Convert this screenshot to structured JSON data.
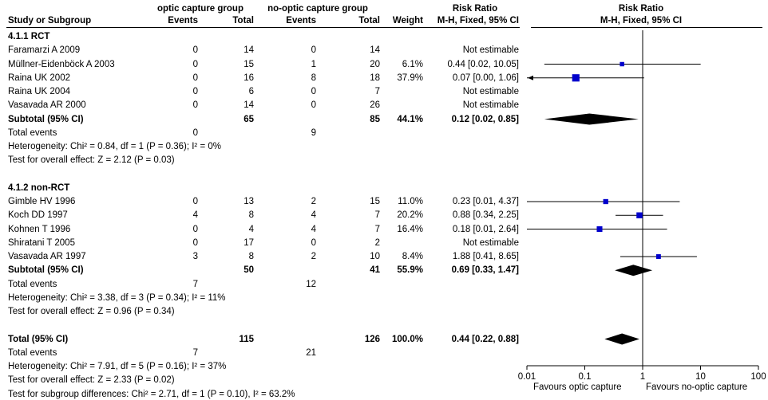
{
  "header": {
    "group1": "optic capture group",
    "group2": "no-optic capture group",
    "rr_col": "Risk Ratio",
    "plot_title": "Risk Ratio",
    "study_col": "Study or Subgroup",
    "events1": "Events",
    "total1": "Total",
    "events2": "Events",
    "total2": "Total",
    "weight": "Weight",
    "method": "M-H, Fixed, 95% CI",
    "plot_method": "M-H, Fixed, 95% CI"
  },
  "rows": [
    {
      "kind": "subgroup",
      "study": "4.1.1 RCT"
    },
    {
      "kind": "study",
      "study": "Faramarzi A 2009",
      "e1": "0",
      "t1": "14",
      "e2": "0",
      "t2": "14",
      "w": "",
      "ci": "Not estimable"
    },
    {
      "kind": "study",
      "study": "Müllner-Eidenböck A  2003",
      "e1": "0",
      "t1": "15",
      "e2": "1",
      "t2": "20",
      "w": "6.1%",
      "ci": "0.44 [0.02, 10.05]"
    },
    {
      "kind": "study",
      "study": "Raina UK 2002",
      "e1": "0",
      "t1": "16",
      "e2": "8",
      "t2": "18",
      "w": "37.9%",
      "ci": "0.07 [0.00, 1.06]"
    },
    {
      "kind": "study",
      "study": "Raina UK 2004",
      "e1": "0",
      "t1": "6",
      "e2": "0",
      "t2": "7",
      "w": "",
      "ci": "Not estimable"
    },
    {
      "kind": "study",
      "study": "Vasavada AR 2000",
      "e1": "0",
      "t1": "14",
      "e2": "0",
      "t2": "26",
      "w": "",
      "ci": "Not estimable"
    },
    {
      "kind": "subtotal",
      "study": "Subtotal (95% CI)",
      "e1": "",
      "t1": "65",
      "e2": "",
      "t2": "85",
      "w": "44.1%",
      "ci": "0.12 [0.02, 0.85]"
    },
    {
      "kind": "events",
      "study": "Total events",
      "e1": "0",
      "t1": "",
      "e2": "9",
      "t2": "",
      "w": "",
      "ci": ""
    },
    {
      "kind": "note",
      "study": "Heterogeneity: Chi² = 0.84, df = 1 (P = 0.36); I² = 0%"
    },
    {
      "kind": "note",
      "study": "Test for overall effect: Z = 2.12 (P = 0.03)"
    },
    {
      "kind": "blank",
      "study": ""
    },
    {
      "kind": "subgroup",
      "study": "4.1.2 non-RCT"
    },
    {
      "kind": "study",
      "study": "Gimble HV 1996",
      "e1": "0",
      "t1": "13",
      "e2": "2",
      "t2": "15",
      "w": "11.0%",
      "ci": "0.23 [0.01, 4.37]"
    },
    {
      "kind": "study",
      "study": "Koch DD 1997",
      "e1": "4",
      "t1": "8",
      "e2": "4",
      "t2": "7",
      "w": "20.2%",
      "ci": "0.88 [0.34, 2.25]"
    },
    {
      "kind": "study",
      "study": "Kohnen T 1996",
      "e1": "0",
      "t1": "4",
      "e2": "4",
      "t2": "7",
      "w": "16.4%",
      "ci": "0.18 [0.01, 2.64]"
    },
    {
      "kind": "study",
      "study": "Shiratani T 2005",
      "e1": "0",
      "t1": "17",
      "e2": "0",
      "t2": "2",
      "w": "",
      "ci": "Not estimable"
    },
    {
      "kind": "study",
      "study": "Vasavada AR 1997",
      "e1": "3",
      "t1": "8",
      "e2": "2",
      "t2": "10",
      "w": "8.4%",
      "ci": "1.88 [0.41, 8.65]"
    },
    {
      "kind": "subtotal",
      "study": "Subtotal (95% CI)",
      "e1": "",
      "t1": "50",
      "e2": "",
      "t2": "41",
      "w": "55.9%",
      "ci": "0.69 [0.33, 1.47]"
    },
    {
      "kind": "events",
      "study": "Total events",
      "e1": "7",
      "t1": "",
      "e2": "12",
      "t2": "",
      "w": "",
      "ci": ""
    },
    {
      "kind": "note",
      "study": "Heterogeneity: Chi² = 3.38, df = 3 (P = 0.34); I² = 11%"
    },
    {
      "kind": "note",
      "study": "Test for overall effect: Z = 0.96 (P = 0.34)"
    },
    {
      "kind": "blank",
      "study": ""
    },
    {
      "kind": "total",
      "study": "Total (95% CI)",
      "e1": "",
      "t1": "115",
      "e2": "",
      "t2": "126",
      "w": "100.0%",
      "ci": "0.44 [0.22, 0.88]"
    },
    {
      "kind": "events",
      "study": "Total events",
      "e1": "7",
      "t1": "",
      "e2": "21",
      "t2": "",
      "w": "",
      "ci": ""
    },
    {
      "kind": "note",
      "study": "Heterogeneity: Chi² = 7.91, df = 5 (P = 0.16); I² = 37%"
    },
    {
      "kind": "note",
      "study": "Test for overall effect: Z = 2.33 (P = 0.02)"
    },
    {
      "kind": "note",
      "study": "Test for subgroup differences: Chi² = 2.71, df = 1 (P = 0.10), I² = 63.2%"
    }
  ],
  "chart_data": {
    "type": "forest",
    "x_scale": "log",
    "xlim": [
      0.01,
      100
    ],
    "ticks": [
      0.01,
      0.1,
      1,
      10,
      100
    ],
    "tick_labels": [
      "0.01",
      "0.1",
      "1",
      "10",
      "100"
    ],
    "favours_left": "Favours optic capture",
    "favours_right": "Favours no-optic capture",
    "null_value": 1,
    "studies": [
      {
        "row": 2,
        "rr": 0.44,
        "lo": 0.02,
        "hi": 10.05,
        "weight": 6.1
      },
      {
        "row": 3,
        "rr": 0.07,
        "lo": 0.0,
        "hi": 1.06,
        "weight": 37.9,
        "arrow_left": true
      },
      {
        "row": 12,
        "rr": 0.23,
        "lo": 0.01,
        "hi": 4.37,
        "weight": 11.0
      },
      {
        "row": 13,
        "rr": 0.88,
        "lo": 0.34,
        "hi": 2.25,
        "weight": 20.2
      },
      {
        "row": 14,
        "rr": 0.18,
        "lo": 0.01,
        "hi": 2.64,
        "weight": 16.4
      },
      {
        "row": 16,
        "rr": 1.88,
        "lo": 0.41,
        "hi": 8.65,
        "weight": 8.4
      }
    ],
    "diamonds": [
      {
        "row": 6,
        "rr": 0.12,
        "lo": 0.02,
        "hi": 0.85
      },
      {
        "row": 17,
        "rr": 0.69,
        "lo": 0.33,
        "hi": 1.47
      },
      {
        "row": 22,
        "rr": 0.44,
        "lo": 0.22,
        "hi": 0.88
      }
    ],
    "colors": {
      "square": "#0000cc",
      "diamond": "#000000",
      "line": "#000000"
    }
  }
}
